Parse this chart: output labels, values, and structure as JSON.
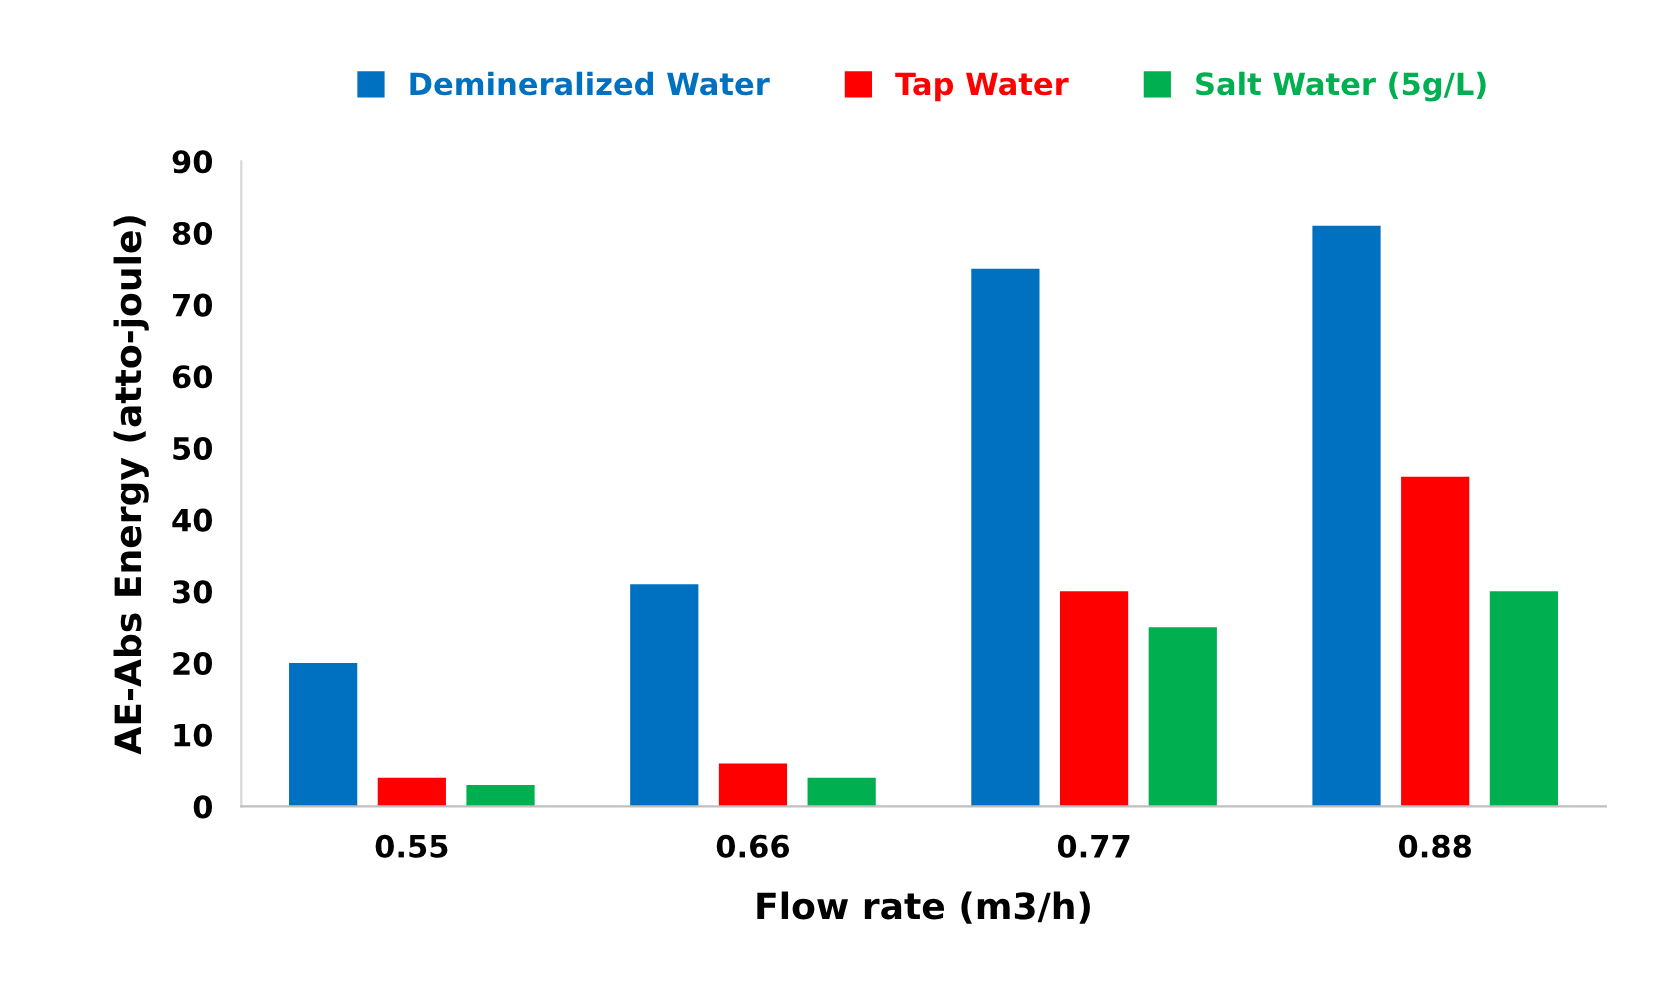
{
  "chart_data": {
    "type": "bar",
    "xlabel": "Flow rate (m3/h)",
    "ylabel": "AE-Abs Energy (atto-joule)",
    "categories": [
      "0.55",
      "0.66",
      "0.77",
      "0.88"
    ],
    "series": [
      {
        "name": "Demineralized Water",
        "color": "#0070c0",
        "values": [
          20,
          31,
          75,
          81
        ]
      },
      {
        "name": "Tap Water",
        "color": "#ff0000",
        "values": [
          4,
          6,
          30,
          46
        ]
      },
      {
        "name": "Salt Water (5g/L)",
        "color": "#00b050",
        "values": [
          3,
          4,
          25,
          30
        ]
      }
    ],
    "ylim": [
      0,
      90
    ],
    "yticks": [
      0,
      10,
      20,
      30,
      40,
      50,
      60,
      70,
      80,
      90
    ],
    "grid": false,
    "legend": "top"
  }
}
